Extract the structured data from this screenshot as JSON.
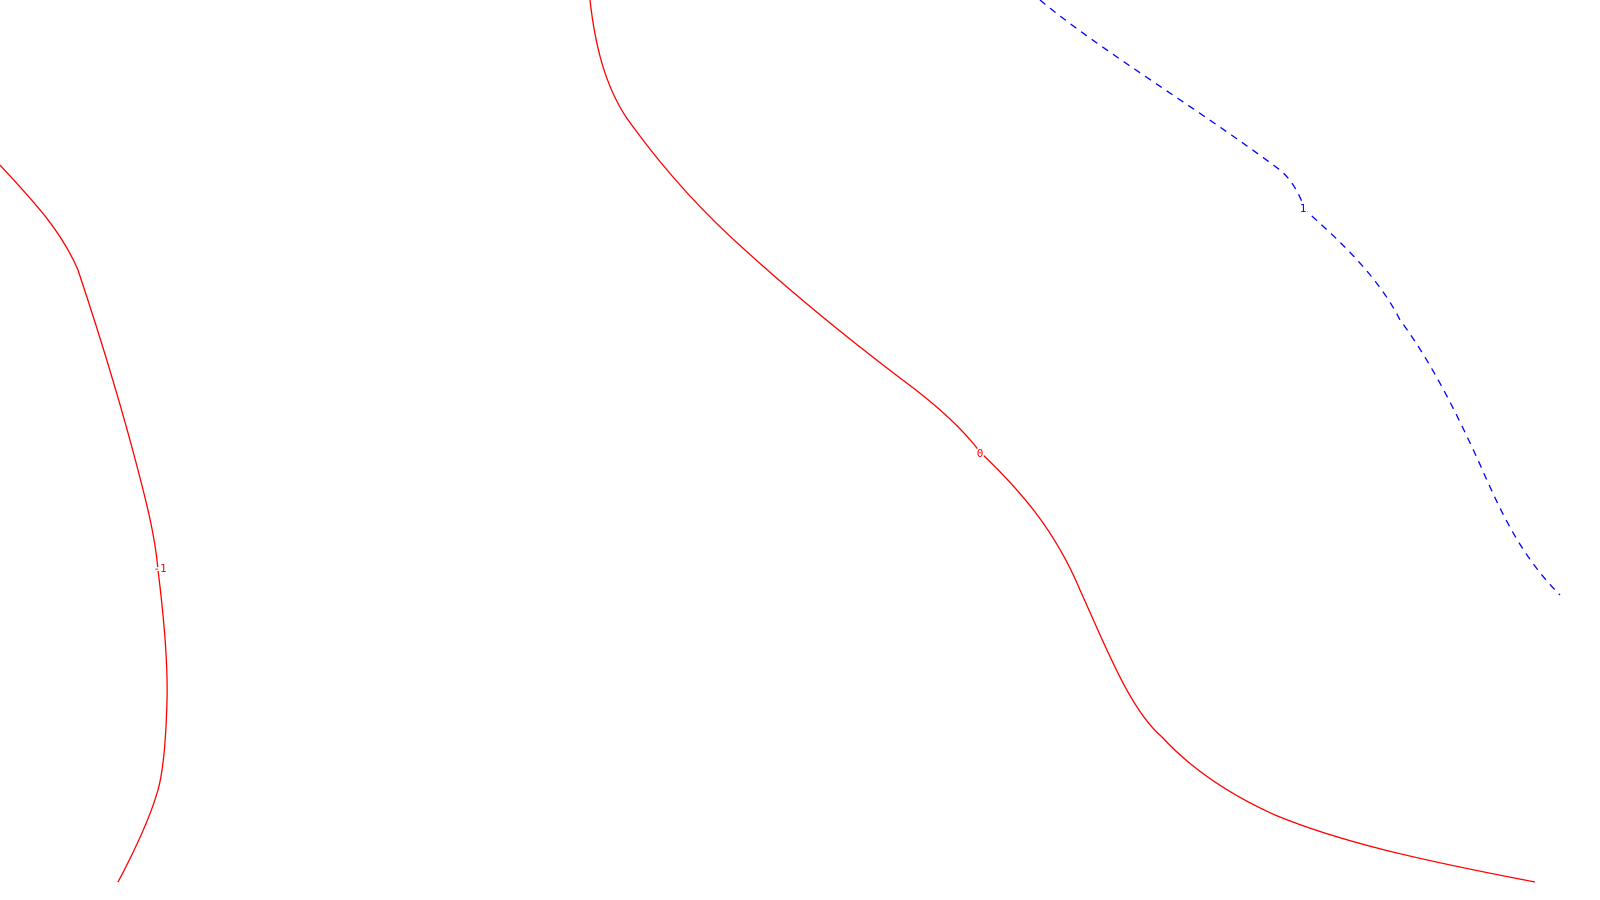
{
  "chart_data": {
    "type": "contour",
    "title": "",
    "xlabel": "",
    "ylabel": "",
    "grid": false,
    "legend": false,
    "levels": [
      {
        "name": "level-minus-1",
        "label": "-1",
        "value": -1,
        "color": "#ff0000",
        "dash": "solid"
      },
      {
        "name": "level-0",
        "label": "0",
        "value": 0,
        "color": "#ff0000",
        "dash": "solid"
      },
      {
        "name": "level-1",
        "label": "1",
        "value": 1,
        "color": "#0000ff",
        "dash": "dashed"
      }
    ]
  }
}
